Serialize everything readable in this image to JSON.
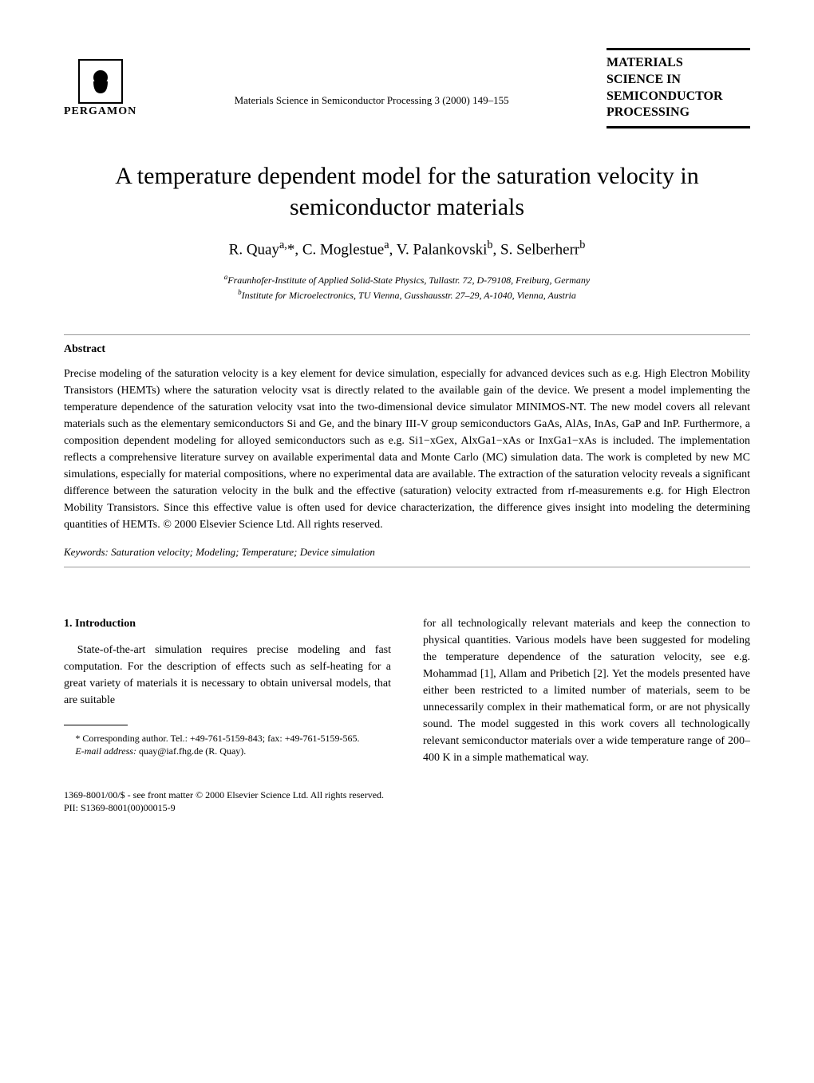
{
  "header": {
    "publisher": "PERGAMON",
    "journal_info": "Materials Science in Semiconductor Processing 3 (2000) 149–155",
    "journal_box_line1": "MATERIALS",
    "journal_box_line2": "SCIENCE IN",
    "journal_box_line3": "SEMICONDUCTOR",
    "journal_box_line4": "PROCESSING"
  },
  "title": "A temperature dependent model for the saturation velocity in semiconductor materials",
  "authors_html": "R. Quay<sup>a,</sup>*, C. Moglestue<sup>a</sup>, V. Palankovski<sup>b</sup>, S. Selberherr<sup>b</sup>",
  "affiliations": {
    "a": "Fraunhofer-Institute of Applied Solid-State Physics, Tullastr. 72, D-79108, Freiburg, Germany",
    "b": "Institute for Microelectronics, TU Vienna, Gusshausstr. 27–29, A-1040, Vienna, Austria"
  },
  "abstract": {
    "heading": "Abstract",
    "body": "Precise modeling of the saturation velocity is a key element for device simulation, especially for advanced devices such as e.g. High Electron Mobility Transistors (HEMTs) where the saturation velocity vsat is directly related to the available gain of the device. We present a model implementing the temperature dependence of the saturation velocity vsat into the two-dimensional device simulator MINIMOS-NT. The new model covers all relevant materials such as the elementary semiconductors Si and Ge, and the binary III-V group semiconductors GaAs, AlAs, InAs, GaP and InP. Furthermore, a composition dependent modeling for alloyed semiconductors such as e.g. Si1−xGex, AlxGa1−xAs or InxGa1−xAs is included. The implementation reflects a comprehensive literature survey on available experimental data and Monte Carlo (MC) simulation data. The work is completed by new MC simulations, especially for material compositions, where no experimental data are available. The extraction of the saturation velocity reveals a significant difference between the saturation velocity in the bulk and the effective (saturation) velocity extracted from rf-measurements e.g. for High Electron Mobility Transistors. Since this effective value is often used for device characterization, the difference gives insight into modeling the determining quantities of HEMTs. © 2000 Elsevier Science Ltd. All rights reserved."
  },
  "keywords": {
    "label": "Keywords:",
    "text": "Saturation velocity; Modeling; Temperature; Device simulation"
  },
  "introduction": {
    "heading": "1. Introduction",
    "para1": "State-of-the-art simulation requires precise modeling and fast computation. For the description of effects such as self-heating for a great variety of materials it is necessary to obtain universal models, that are suitable",
    "para2": "for all technologically relevant materials and keep the connection to physical quantities. Various models have been suggested for modeling the temperature dependence of the saturation velocity, see e.g. Mohammad [1], Allam and Pribetich [2]. Yet the models presented have either been restricted to a limited number of materials, seem to be unnecessarily complex in their mathematical form, or are not physically sound. The model suggested in this work covers all technologically relevant semiconductor materials over a wide temperature range of 200–400 K in a simple mathematical way."
  },
  "footnotes": {
    "corresponding": "* Corresponding author. Tel.: +49-761-5159-843; fax: +49-761-5159-565.",
    "email_label": "E-mail address:",
    "email": "quay@iaf.fhg.de (R. Quay)."
  },
  "copyright": {
    "line1": "1369-8001/00/$ - see front matter © 2000 Elsevier Science Ltd. All rights reserved.",
    "line2": "PII: S1369-8001(00)00015-9"
  },
  "colors": {
    "text": "#000000",
    "background": "#ffffff",
    "divider": "#999999"
  }
}
